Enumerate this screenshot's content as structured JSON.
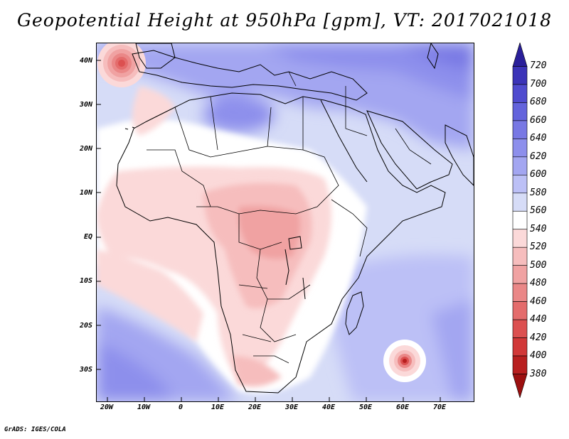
{
  "title": "Geopotential Height at 950hPa [gpm], VT: 2017021018",
  "credit": "GrADS: IGES/COLA",
  "map": {
    "lon_range": [
      -22,
      80
    ],
    "lat_range": [
      -37,
      45
    ],
    "lat_ticks": [
      {
        "value": 40,
        "label": "40N"
      },
      {
        "value": 30,
        "label": "30N"
      },
      {
        "value": 20,
        "label": "20N"
      },
      {
        "value": 10,
        "label": "10N"
      },
      {
        "value": 0,
        "label": "EQ"
      },
      {
        "value": -10,
        "label": "10S"
      },
      {
        "value": -20,
        "label": "20S"
      },
      {
        "value": -30,
        "label": "30S"
      }
    ],
    "lon_ticks": [
      {
        "value": -20,
        "label": "20W"
      },
      {
        "value": -10,
        "label": "10W"
      },
      {
        "value": 0,
        "label": "0"
      },
      {
        "value": 10,
        "label": "10E"
      },
      {
        "value": 20,
        "label": "20E"
      },
      {
        "value": 30,
        "label": "30E"
      },
      {
        "value": 40,
        "label": "40E"
      },
      {
        "value": 50,
        "label": "50E"
      },
      {
        "value": 60,
        "label": "60E"
      },
      {
        "value": 70,
        "label": "70E"
      }
    ],
    "features": [
      {
        "name": "low-center-northwest",
        "lon": -15,
        "lat": 39,
        "value": 400
      },
      {
        "name": "low-center-southeast",
        "lon": 61,
        "lat": -28,
        "value": 420
      }
    ]
  },
  "colorbar": {
    "levels": [
      720,
      700,
      680,
      660,
      640,
      620,
      600,
      580,
      560,
      540,
      520,
      500,
      480,
      460,
      440,
      420,
      400,
      380
    ],
    "colors": [
      "#2a1f9a",
      "#3b33b8",
      "#4f4bcf",
      "#6363dc",
      "#7878e4",
      "#8d8fec",
      "#a3a6f1",
      "#bcc0f6",
      "#d6dcf7",
      "#ffffff",
      "#fbd9d9",
      "#f6bdbd",
      "#f0a2a2",
      "#ea8787",
      "#e46c6c",
      "#dc5050",
      "#d13838",
      "#b81f1f",
      "#9c1010"
    ]
  }
}
